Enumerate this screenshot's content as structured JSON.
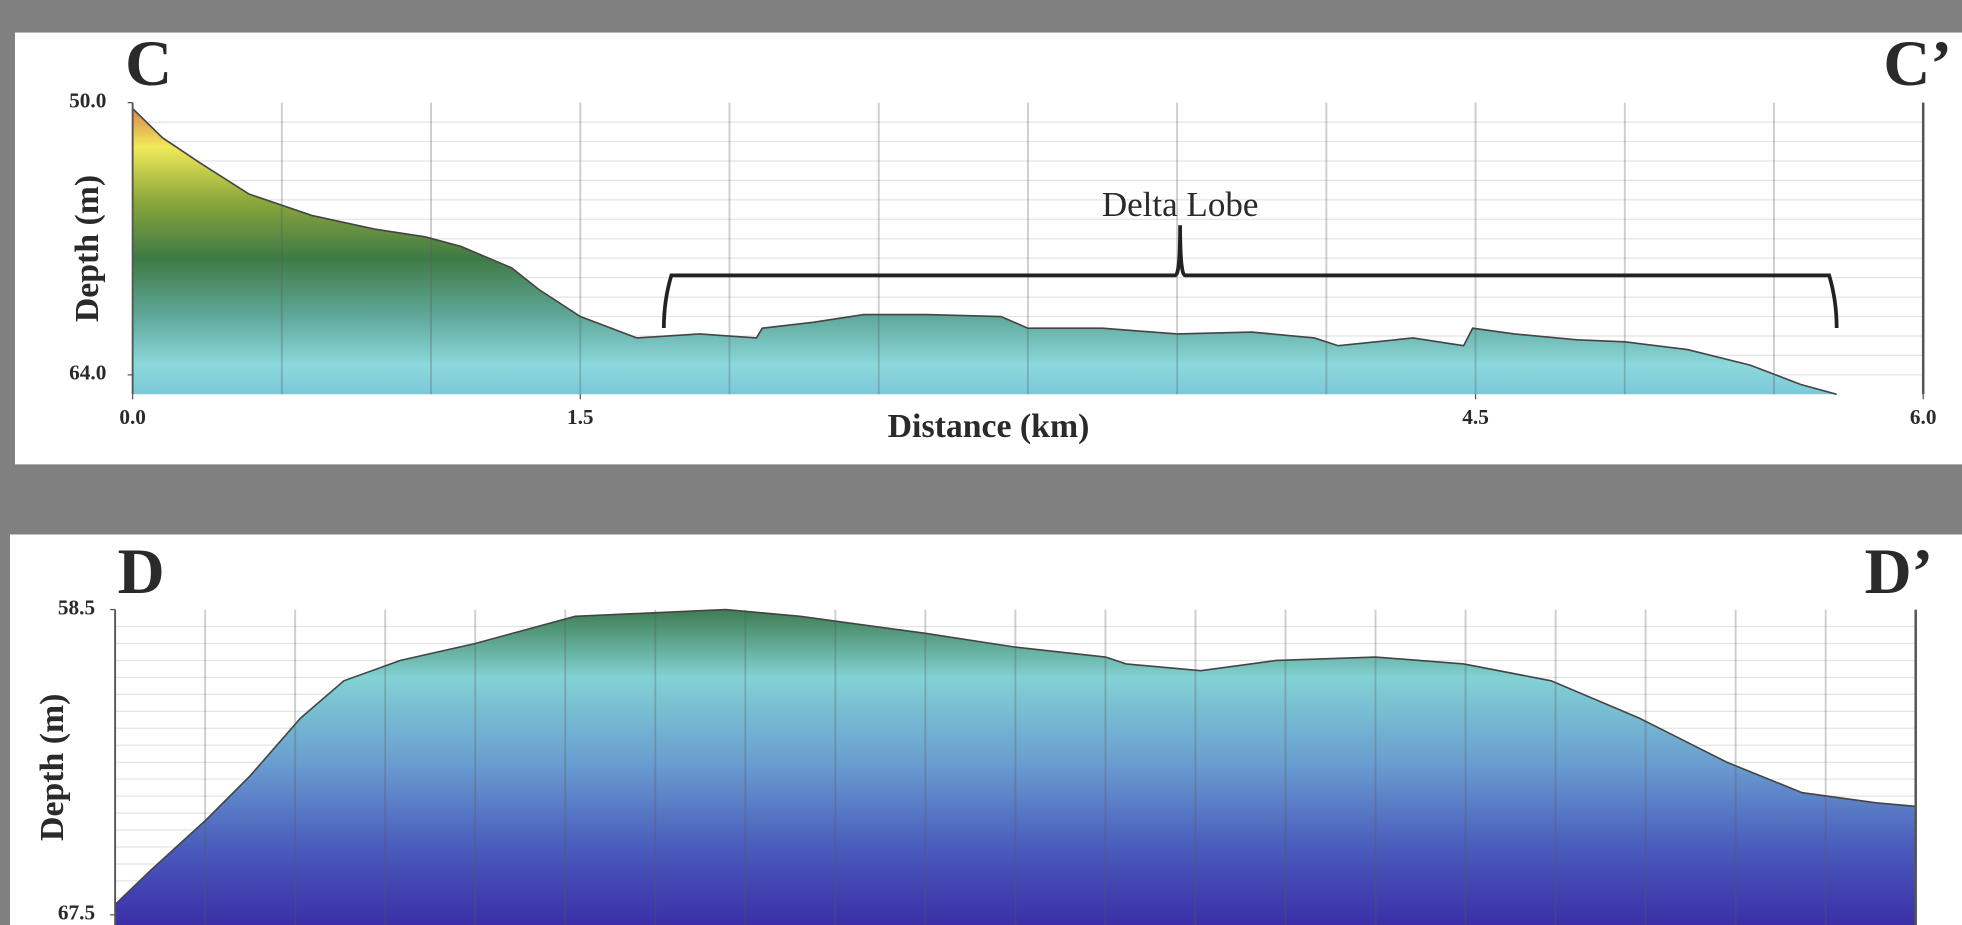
{
  "chart_data": [
    {
      "type": "area",
      "corner_labels": [
        "C",
        "C’"
      ],
      "xlabel": "Distance (km)",
      "ylabel": "Depth (m)",
      "xlim": [
        0,
        6
      ],
      "ylim": [
        50,
        65
      ],
      "xticks": [
        {
          "value": 0,
          "label": "0.0"
        },
        {
          "value": 1.5,
          "label": "1.5"
        },
        {
          "value": 4.5,
          "label": "4.5"
        },
        {
          "value": 6,
          "label": "6.0"
        }
      ],
      "yticks": [
        {
          "value": 50,
          "label": "50.0"
        },
        {
          "value": 64,
          "label": "64.0"
        }
      ],
      "xgrid": [
        0.5,
        1,
        1.5,
        2,
        2.5,
        3,
        3.5,
        4,
        4.5,
        5,
        5.5
      ],
      "ygrid": [
        51,
        52,
        53,
        54,
        55,
        56,
        57,
        58,
        59,
        60,
        61,
        62,
        63,
        64
      ],
      "colorscale": [
        [
          50,
          "#d9774a"
        ],
        [
          52.3,
          "#f0ea5a"
        ],
        [
          55,
          "#8da83a"
        ],
        [
          58,
          "#3f7a45"
        ],
        [
          61,
          "#5fa89a"
        ],
        [
          63.5,
          "#8cd8dc"
        ],
        [
          65,
          "#7cc8d8"
        ]
      ],
      "x": [
        0,
        0.1,
        0.226,
        0.39,
        0.6,
        0.81,
        0.98,
        1.1,
        1.27,
        1.36,
        1.5,
        1.69,
        1.9,
        2.09,
        2.11,
        2.28,
        2.45,
        2.66,
        2.91,
        3.0,
        3.25,
        3.5,
        3.75,
        3.96,
        4.04,
        4.29,
        4.46,
        4.49,
        4.63,
        4.84,
        5.0,
        5.21,
        5.42,
        5.59,
        5.71
      ],
      "values": [
        50.3,
        51.8,
        53.1,
        54.7,
        55.8,
        56.5,
        56.9,
        57.4,
        58.5,
        59.6,
        61.0,
        62.1,
        61.9,
        62.1,
        61.6,
        61.3,
        60.9,
        60.9,
        61.0,
        61.6,
        61.6,
        61.9,
        61.8,
        62.1,
        62.5,
        62.1,
        62.5,
        61.6,
        61.9,
        62.2,
        62.3,
        62.7,
        63.5,
        64.5,
        65.0
      ],
      "annotations": [
        {
          "text": "Delta Lobe",
          "x": 3.51,
          "span": [
            1.78,
            5.71
          ]
        }
      ]
    },
    {
      "type": "area",
      "corner_labels": [
        "D",
        "D’"
      ],
      "ylabel": "Depth (m)",
      "xlim": [
        0,
        20
      ],
      "ylim": [
        58.5,
        67.8
      ],
      "yticks": [
        {
          "value": 58.5,
          "label": "58.5"
        },
        {
          "value": 67.5,
          "label": "67.5"
        }
      ],
      "xgrid": [
        1,
        2,
        3,
        4,
        5,
        6,
        7,
        8,
        9,
        10,
        11,
        12,
        13,
        14,
        15,
        16,
        17,
        18,
        19
      ],
      "ygrid": [
        59,
        59.5,
        60,
        60.5,
        61,
        61.5,
        62,
        62.5,
        63,
        63.5,
        64,
        64.5,
        65,
        65.5,
        66,
        66.5,
        67,
        67.5
      ],
      "colorscale": [
        [
          58.5,
          "#3e7d52"
        ],
        [
          60.5,
          "#82d2d4"
        ],
        [
          63,
          "#6a9ed0"
        ],
        [
          65.5,
          "#4a5cbc"
        ],
        [
          67.8,
          "#3b2fa8"
        ]
      ],
      "x": [
        0,
        0.39,
        1.01,
        1.5,
        2.06,
        2.54,
        3.17,
        4.0,
        5.11,
        5.95,
        6.78,
        7.61,
        9.0,
        9.98,
        11.0,
        11.23,
        12.06,
        12.9,
        14.0,
        14.98,
        15.95,
        16.93,
        17.9,
        18.74,
        19.57,
        20
      ],
      "values": [
        67.2,
        66.2,
        64.7,
        63.4,
        61.7,
        60.6,
        60.0,
        59.5,
        58.7,
        58.6,
        58.5,
        58.7,
        59.2,
        59.6,
        59.9,
        60.1,
        60.3,
        60.0,
        59.9,
        60.1,
        60.6,
        61.7,
        63.0,
        63.9,
        64.2,
        64.3
      ]
    }
  ]
}
